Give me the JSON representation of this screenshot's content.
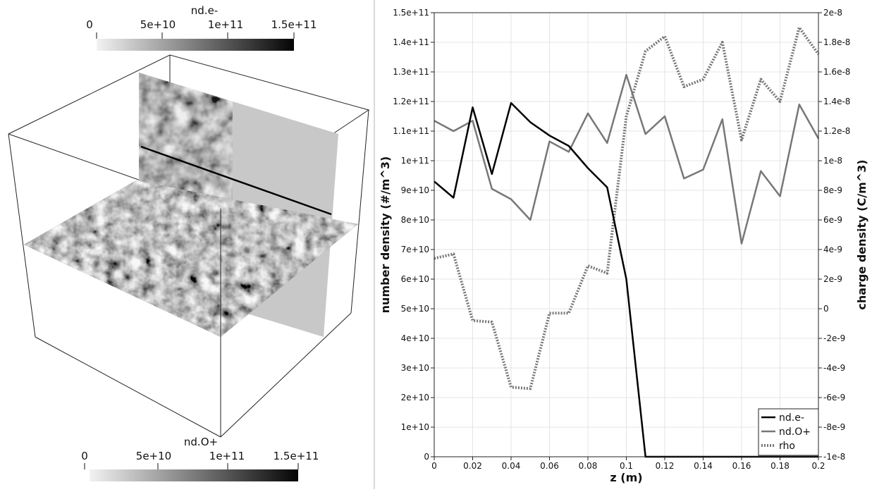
{
  "render_view": {
    "top_colorbar": {
      "title": "nd.e-",
      "ticks": [
        "0",
        "5e+10",
        "1e+11",
        "1.5e+11"
      ],
      "range": [
        0,
        150000000000
      ]
    },
    "bottom_colorbar": {
      "title": "nd.O+",
      "ticks": [
        "0",
        "5e+10",
        "1e+11",
        "1.5e+11"
      ],
      "range": [
        0,
        150000000000
      ]
    },
    "colors": {
      "colormap_low": "#f2f2f2",
      "colormap_high": "#050505",
      "empty_slice": "#c8c8c8",
      "outline": "#222222"
    }
  },
  "chart_data": {
    "type": "line",
    "xlabel": "z (m)",
    "ylabel_left": "number density (#/m^3)",
    "ylabel_right": "charge density (C/m^3)",
    "xlim": [
      0,
      0.2
    ],
    "ylim_left": [
      0,
      150000000000
    ],
    "ylim_right": [
      -1e-08,
      2e-08
    ],
    "x_ticks": [
      "0",
      "0.02",
      "0.04",
      "0.06",
      "0.08",
      "0.1",
      "0.12",
      "0.14",
      "0.16",
      "0.18",
      "0.2"
    ],
    "y_left_ticks": [
      "0",
      "1e+10",
      "2e+10",
      "3e+10",
      "4e+10",
      "5e+10",
      "6e+10",
      "7e+10",
      "8e+10",
      "9e+10",
      "1e+11",
      "1.1e+11",
      "1.2e+11",
      "1.3e+11",
      "1.4e+11",
      "1.5e+11"
    ],
    "y_right_ticks": [
      "-1e-8",
      "-8e-9",
      "-6e-9",
      "-4e-9",
      "-2e-9",
      "0",
      "2e-9",
      "4e-9",
      "6e-9",
      "8e-9",
      "1e-8",
      "1.2e-8",
      "1.4e-8",
      "1.6e-8",
      "1.8e-8",
      "2e-8"
    ],
    "grid": true,
    "legend_position": "bottom-right",
    "series": [
      {
        "name": "nd.e-",
        "axis": "left",
        "color": "#000000",
        "style": "solid",
        "x": [
          0,
          0.01,
          0.02,
          0.03,
          0.04,
          0.05,
          0.06,
          0.07,
          0.08,
          0.09,
          0.1,
          0.11,
          0.12,
          0.13,
          0.14,
          0.15,
          0.16,
          0.17,
          0.18,
          0.19,
          0.2
        ],
        "y": [
          93000000000,
          87500000000,
          118000000000,
          95500000000,
          119500000000,
          113000000000,
          108500000000,
          105000000000,
          97500000000,
          91000000000,
          60000000000,
          0,
          0,
          0,
          0,
          0,
          0,
          0,
          0,
          0,
          0
        ]
      },
      {
        "name": "nd.O+",
        "axis": "left",
        "color": "#777777",
        "style": "solid",
        "x": [
          0,
          0.01,
          0.02,
          0.03,
          0.04,
          0.05,
          0.06,
          0.07,
          0.08,
          0.09,
          0.1,
          0.11,
          0.12,
          0.13,
          0.14,
          0.15,
          0.16,
          0.17,
          0.18,
          0.19,
          0.2
        ],
        "y": [
          113500000000,
          110000000000,
          113500000000,
          90500000000,
          87000000000,
          80000000000,
          106500000000,
          103000000000,
          116000000000,
          106000000000,
          129000000000,
          109000000000,
          115000000000,
          94000000000,
          97000000000,
          114000000000,
          72000000000,
          96500000000,
          88000000000,
          119000000000,
          107500000000
        ]
      },
      {
        "name": "rho",
        "axis": "right",
        "color": "#777777",
        "style": "dotted",
        "x": [
          0,
          0.01,
          0.02,
          0.03,
          0.04,
          0.05,
          0.06,
          0.07,
          0.08,
          0.09,
          0.1,
          0.11,
          0.12,
          0.13,
          0.14,
          0.15,
          0.16,
          0.17,
          0.18,
          0.19,
          0.2
        ],
        "y": [
          3.4e-09,
          3.7e-09,
          -8e-10,
          -9e-10,
          -5.3e-09,
          -5.4e-09,
          -3e-10,
          -3e-10,
          2.9e-09,
          2.4e-09,
          1.3e-08,
          1.74e-08,
          1.84e-08,
          1.5e-08,
          1.55e-08,
          1.8e-08,
          1.14e-08,
          1.55e-08,
          1.4e-08,
          1.9e-08,
          1.72e-08
        ]
      }
    ]
  }
}
